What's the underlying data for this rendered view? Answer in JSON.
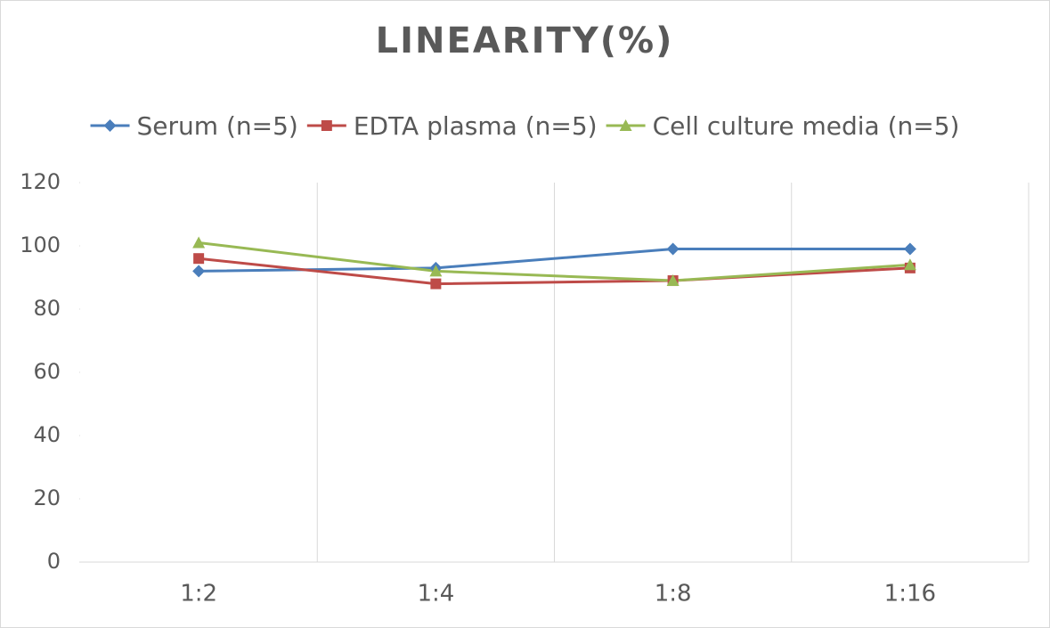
{
  "chart_data": {
    "type": "line",
    "title": "LINEARITY(%)",
    "categories": [
      "1:2",
      "1:4",
      "1:8",
      "1:16"
    ],
    "series": [
      {
        "name": "Serum (n=5)",
        "color": "#4a7ebb",
        "marker": "diamond",
        "values": [
          92,
          93,
          99,
          99
        ]
      },
      {
        "name": "EDTA plasma (n=5)",
        "color": "#be4b48",
        "marker": "square",
        "values": [
          96,
          88,
          89,
          93
        ]
      },
      {
        "name": "Cell culture media (n=5)",
        "color": "#98b954",
        "marker": "triangle",
        "values": [
          101,
          92,
          89,
          94
        ]
      }
    ],
    "ylim": [
      0,
      120
    ],
    "yticks": [
      0,
      20,
      40,
      60,
      80,
      100,
      120
    ],
    "legend": "top"
  }
}
